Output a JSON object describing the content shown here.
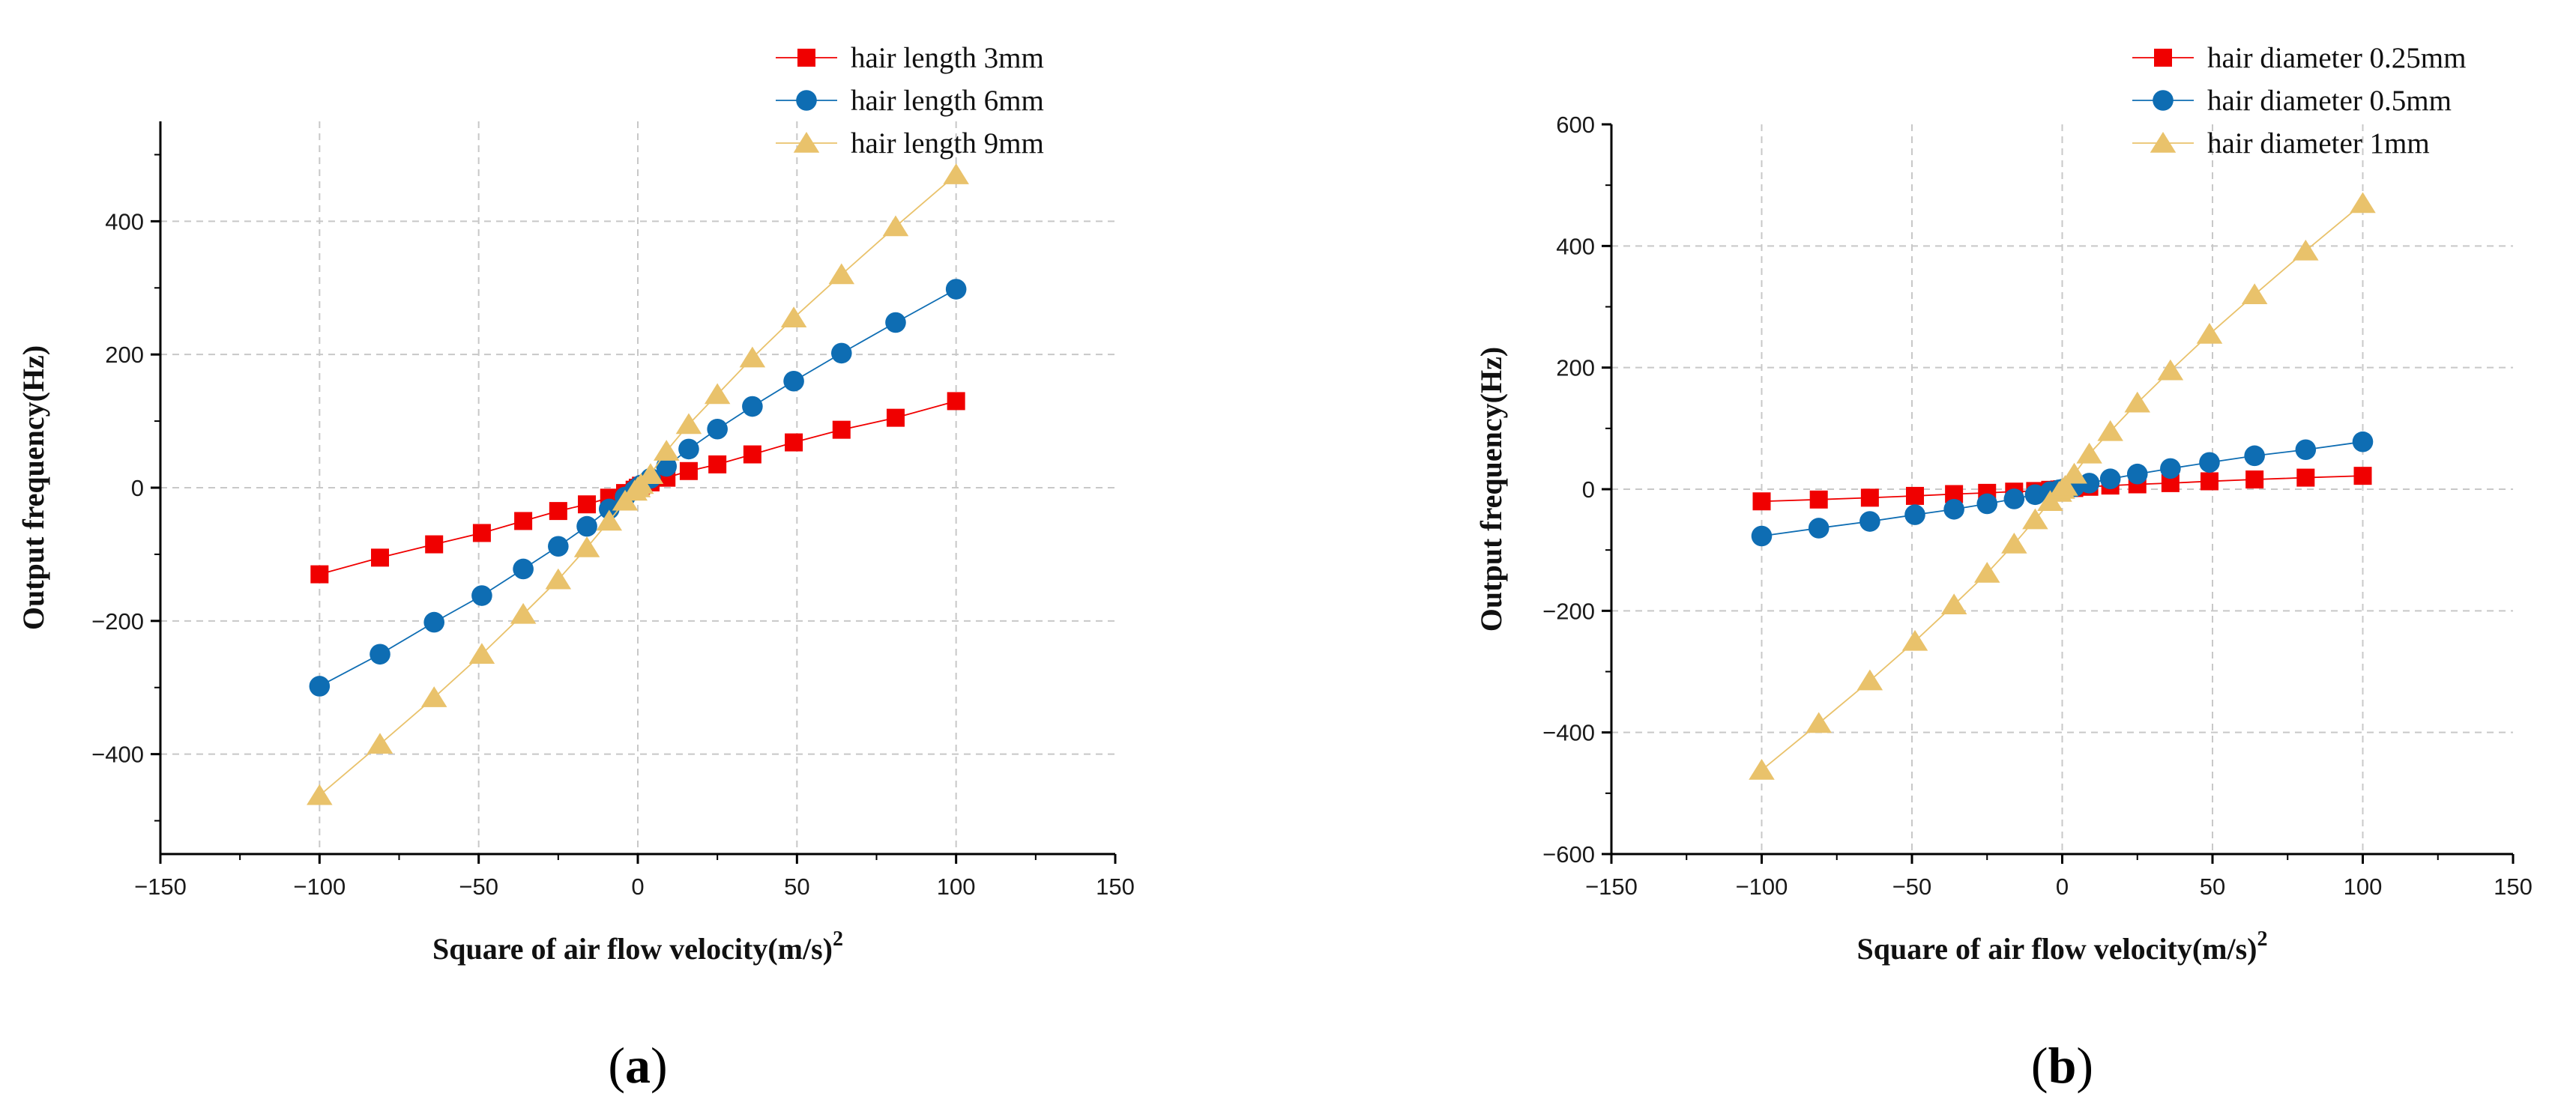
{
  "chart_data": [
    {
      "type": "line",
      "panel": "(a)",
      "xlabel": "Square of air flow velocity(m/s)",
      "xlabel_sup": "2",
      "ylabel": "Output frequency(Hz)",
      "xlim": [
        -150,
        150
      ],
      "ylim": [
        -550,
        550
      ],
      "xticks": [
        -150,
        -100,
        -50,
        0,
        50,
        100,
        150
      ],
      "yticks": [
        -400,
        -200,
        0,
        200,
        400
      ],
      "grid": true,
      "legend_position": "top-right",
      "x": [
        -100,
        -81,
        -64,
        -49,
        -36,
        -25,
        -16,
        -9,
        -4,
        -1,
        0,
        1,
        4,
        9,
        16,
        25,
        36,
        49,
        64,
        81,
        100
      ],
      "series": [
        {
          "name": "hair length 3mm",
          "color": "#f00000",
          "marker": "square",
          "values": [
            -130,
            -105,
            -85,
            -68,
            -50,
            -35,
            -25,
            -15,
            -8,
            -3,
            0,
            3,
            8,
            15,
            25,
            35,
            50,
            68,
            87,
            105,
            130
          ]
        },
        {
          "name": "hair length 6mm",
          "color": "#0e6db3",
          "marker": "circle",
          "values": [
            -298,
            -250,
            -202,
            -162,
            -122,
            -88,
            -58,
            -32,
            -14,
            -4,
            0,
            4,
            14,
            32,
            58,
            88,
            122,
            160,
            202,
            248,
            298
          ]
        },
        {
          "name": "hair length 9mm",
          "color": "#e9c26b",
          "marker": "triangle",
          "values": [
            -462,
            -385,
            -315,
            -250,
            -190,
            -138,
            -90,
            -50,
            -20,
            -5,
            0,
            5,
            20,
            55,
            95,
            140,
            195,
            255,
            320,
            392,
            470
          ]
        }
      ]
    },
    {
      "type": "line",
      "panel": "(b)",
      "xlabel": "Square of air flow velocity(m/s)",
      "xlabel_sup": "2",
      "ylabel": "Output frequency(Hz)",
      "xlim": [
        -150,
        150
      ],
      "ylim": [
        -600,
        600
      ],
      "xticks": [
        -150,
        -100,
        -50,
        0,
        50,
        100,
        150
      ],
      "yticks": [
        -600,
        -400,
        -200,
        0,
        200,
        400,
        600
      ],
      "grid": true,
      "legend_position": "top-right",
      "x": [
        -100,
        -81,
        -64,
        -49,
        -36,
        -25,
        -16,
        -9,
        -4,
        -1,
        0,
        1,
        4,
        9,
        16,
        25,
        36,
        49,
        64,
        81,
        100
      ],
      "series": [
        {
          "name": "hair diameter 0.25mm",
          "color": "#f00000",
          "marker": "square",
          "values": [
            -20,
            -17,
            -14,
            -11,
            -8,
            -6,
            -4,
            -3,
            -1,
            -0.5,
            0,
            0.5,
            2,
            4,
            6,
            8,
            10,
            13,
            16,
            19,
            22
          ]
        },
        {
          "name": "hair diameter 0.5mm",
          "color": "#0e6db3",
          "marker": "circle",
          "values": [
            -77,
            -64,
            -53,
            -42,
            -33,
            -24,
            -16,
            -9,
            -4,
            -1,
            0,
            1,
            4,
            10,
            17,
            25,
            34,
            44,
            55,
            65,
            78
          ]
        },
        {
          "name": "hair diameter 1mm",
          "color": "#e9c26b",
          "marker": "triangle",
          "values": [
            -462,
            -385,
            -315,
            -250,
            -190,
            -138,
            -90,
            -50,
            -20,
            -5,
            0,
            5,
            25,
            58,
            95,
            142,
            195,
            255,
            320,
            392,
            470
          ]
        }
      ]
    }
  ]
}
